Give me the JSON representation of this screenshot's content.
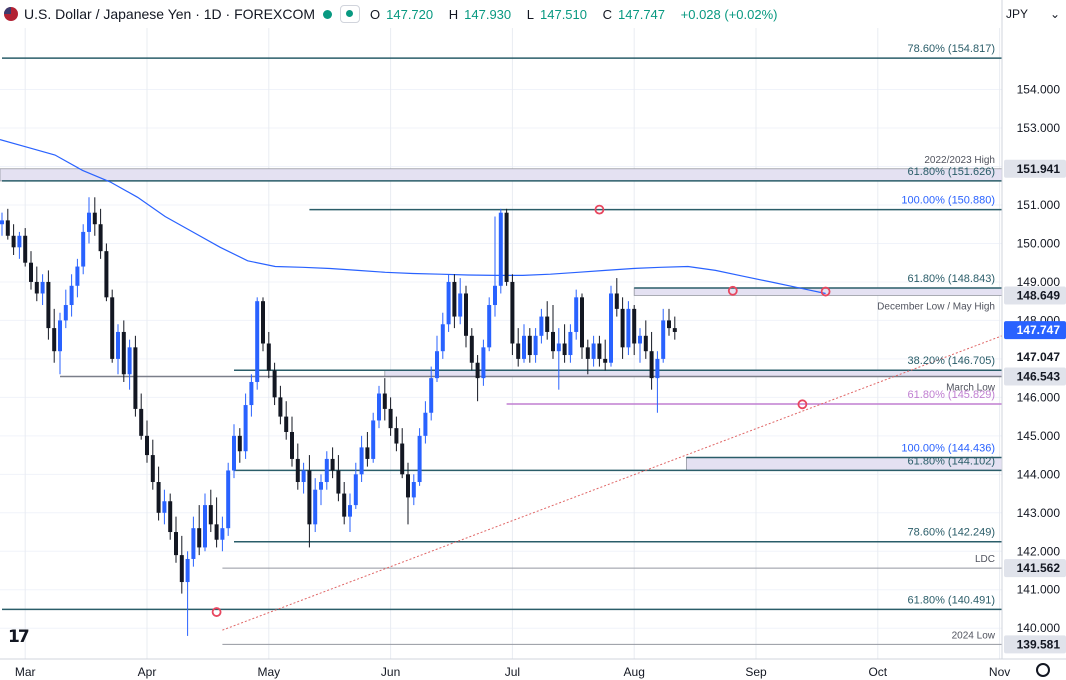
{
  "header": {
    "title": "U.S. Dollar / Japanese Yen · 1D · FOREXCOM",
    "o_label": "O",
    "o": "147.720",
    "h_label": "H",
    "h": "147.930",
    "l_label": "L",
    "l": "147.510",
    "c_label": "C",
    "c": "147.747",
    "change": "+0.028 (+0.02%)"
  },
  "currency": "JPY",
  "logo_text": "17",
  "colors": {
    "up": "#2962ff",
    "down": "#131722",
    "ma": "#2962ff",
    "fib": "#2a5d69",
    "gray": "#9598a1",
    "purple": "#c07fd1",
    "trend": "#e06666",
    "marker": "#e8475f",
    "zone": "#e4e1f2",
    "label_teal": "#2a5d69",
    "label_blue": "#2962ff"
  },
  "chart_data": {
    "type": "candlestick",
    "symbol": "USD/JPY",
    "interval": "1D",
    "x_tick_labels": [
      "Mar",
      "Apr",
      "May",
      "Jun",
      "Jul",
      "Aug",
      "Sep",
      "Oct",
      "Nov"
    ],
    "y_range": [
      139.2,
      155.6
    ],
    "y_tick_labels": [
      "140.000",
      "141.000",
      "142.000",
      "143.000",
      "144.000",
      "145.000",
      "146.000",
      "147.000",
      "148.000",
      "149.000",
      "150.000",
      "151.000",
      "152.000",
      "153.000",
      "154.000"
    ],
    "y_ticks": [
      140,
      141,
      142,
      143,
      144,
      145,
      146,
      147,
      148,
      149,
      150,
      151,
      152,
      153,
      154
    ],
    "last_price": 147.747,
    "price_badges": [
      {
        "value": 151.941,
        "label": "151.941",
        "style": "gray"
      },
      {
        "value": 148.649,
        "label": "148.649",
        "style": "gray"
      },
      {
        "value": 147.747,
        "label": "147.747",
        "style": "last"
      },
      {
        "value": 147.047,
        "label": "147.047",
        "style": "plain"
      },
      {
        "value": 146.543,
        "label": "146.543",
        "style": "gray"
      },
      {
        "value": 141.562,
        "label": "141.562",
        "style": "gray"
      },
      {
        "value": 139.581,
        "label": "139.581",
        "style": "gray"
      }
    ],
    "levels": [
      {
        "value": 154.817,
        "label": "78.60% (154.817)",
        "style": "fib"
      },
      {
        "value": 151.626,
        "label": "61.80% (151.626)",
        "style": "fib"
      },
      {
        "value": 150.88,
        "label": "100.00% (150.880)",
        "style": "blue"
      },
      {
        "value": 148.843,
        "label": "61.80% (148.843)",
        "style": "fib"
      },
      {
        "value": 146.705,
        "label": "38.20% (146.705)",
        "style": "fib"
      },
      {
        "value": 145.829,
        "label": "61.80% (145.829)",
        "style": "purple"
      },
      {
        "value": 144.436,
        "label": "100.00% (144.436)",
        "style": "blue"
      },
      {
        "value": 144.102,
        "label": "61.80% (144.102)",
        "style": "fib"
      },
      {
        "value": 142.249,
        "label": "78.60% (142.249)",
        "style": "fib"
      },
      {
        "value": 140.491,
        "label": "61.80% (140.491)",
        "style": "fib"
      }
    ],
    "annotations": [
      {
        "value": 151.941,
        "label": "2022/2023 High"
      },
      {
        "value": 148.649,
        "label": "December Low / May High"
      },
      {
        "value": 146.543,
        "label": "March Low"
      },
      {
        "value": 141.562,
        "label": "LDC"
      },
      {
        "value": 139.581,
        "label": "2024 Low"
      }
    ],
    "zones": [
      {
        "from": 151.626,
        "to": 151.941,
        "label": "2022/2023 High"
      },
      {
        "from": 148.649,
        "to": 148.843,
        "label": "December Low / May High"
      },
      {
        "from": 146.543,
        "to": 146.705,
        "label": "March Low"
      },
      {
        "from": 144.102,
        "to": 144.436,
        "label": "61.80% (144.102)"
      }
    ],
    "trendline": {
      "from": [
        0,
        139.95
      ],
      "to": [
        168,
        147.6
      ]
    },
    "markers": [
      {
        "bar": 37,
        "price": 140.42
      },
      {
        "bar": 103,
        "price": 150.88
      },
      {
        "bar": 126,
        "price": 148.77
      },
      {
        "bar": 138,
        "price": 145.82
      },
      {
        "bar": 142,
        "price": 148.75
      }
    ],
    "ma_series": [
      152.7,
      152.5,
      152.3,
      151.9,
      151.6,
      151.2,
      150.7,
      150.3,
      149.9,
      149.55,
      149.4,
      149.38,
      149.35,
      149.3,
      149.25,
      149.22,
      149.2,
      149.18,
      149.17,
      149.17,
      149.2,
      149.25,
      149.3,
      149.35,
      149.38,
      149.4,
      149.3,
      149.15,
      149.0,
      148.85,
      148.7
    ],
    "candles": [
      [
        150.5,
        150.8,
        150.2,
        150.6
      ],
      [
        150.6,
        150.9,
        150.1,
        150.2
      ],
      [
        150.2,
        150.5,
        149.7,
        149.9
      ],
      [
        149.9,
        150.3,
        149.6,
        150.2
      ],
      [
        150.2,
        150.4,
        149.4,
        149.5
      ],
      [
        149.5,
        149.8,
        148.8,
        149.0
      ],
      [
        149.0,
        149.4,
        148.5,
        148.7
      ],
      [
        148.7,
        149.2,
        148.4,
        149.0
      ],
      [
        149.0,
        149.3,
        147.5,
        147.8
      ],
      [
        147.8,
        148.3,
        146.9,
        147.2
      ],
      [
        147.2,
        148.2,
        146.6,
        148.0
      ],
      [
        148.0,
        148.8,
        147.8,
        148.4
      ],
      [
        148.4,
        149.2,
        148.1,
        148.9
      ],
      [
        148.9,
        149.6,
        148.6,
        149.4
      ],
      [
        149.4,
        150.5,
        149.2,
        150.3
      ],
      [
        150.3,
        151.2,
        150.0,
        150.8
      ],
      [
        150.8,
        151.2,
        150.2,
        150.5
      ],
      [
        150.5,
        150.9,
        149.6,
        149.8
      ],
      [
        149.8,
        150.0,
        148.5,
        148.6
      ],
      [
        148.6,
        148.8,
        146.9,
        147.0
      ],
      [
        147.0,
        147.9,
        146.6,
        147.7
      ],
      [
        147.7,
        148.0,
        146.4,
        146.6
      ],
      [
        146.6,
        147.5,
        146.2,
        147.3
      ],
      [
        147.3,
        147.6,
        145.5,
        145.7
      ],
      [
        145.7,
        146.1,
        144.9,
        145.0
      ],
      [
        145.0,
        145.4,
        144.3,
        144.5
      ],
      [
        144.5,
        144.9,
        143.6,
        143.8
      ],
      [
        143.8,
        144.2,
        142.8,
        143.0
      ],
      [
        143.0,
        143.6,
        142.7,
        143.3
      ],
      [
        143.3,
        143.5,
        142.3,
        142.5
      ],
      [
        142.5,
        142.9,
        141.7,
        141.9
      ],
      [
        141.9,
        142.4,
        140.9,
        141.2
      ],
      [
        141.2,
        142.0,
        139.8,
        141.8
      ],
      [
        141.8,
        142.9,
        141.6,
        142.6
      ],
      [
        142.6,
        143.2,
        141.9,
        142.1
      ],
      [
        142.1,
        143.5,
        142.0,
        143.2
      ],
      [
        143.2,
        143.6,
        142.5,
        142.7
      ],
      [
        142.7,
        143.4,
        142.1,
        142.3
      ],
      [
        142.3,
        142.9,
        142.0,
        142.6
      ],
      [
        142.6,
        144.3,
        142.4,
        144.1
      ],
      [
        144.1,
        145.3,
        143.9,
        145.0
      ],
      [
        145.0,
        145.2,
        144.3,
        144.6
      ],
      [
        144.6,
        146.1,
        144.4,
        145.8
      ],
      [
        145.8,
        146.6,
        145.5,
        146.4
      ],
      [
        146.4,
        148.6,
        146.2,
        148.5
      ],
      [
        148.5,
        148.6,
        147.2,
        147.4
      ],
      [
        147.4,
        147.7,
        146.5,
        146.7
      ],
      [
        146.7,
        146.9,
        145.8,
        146.0
      ],
      [
        146.0,
        146.3,
        145.3,
        145.5
      ],
      [
        145.5,
        145.9,
        144.9,
        145.1
      ],
      [
        145.1,
        145.5,
        144.2,
        144.4
      ],
      [
        144.4,
        144.8,
        143.6,
        143.8
      ],
      [
        143.8,
        144.3,
        143.5,
        144.1
      ],
      [
        144.1,
        144.5,
        142.1,
        142.7
      ],
      [
        142.7,
        143.9,
        142.5,
        143.6
      ],
      [
        143.6,
        144.0,
        143.2,
        143.8
      ],
      [
        143.8,
        144.6,
        143.6,
        144.4
      ],
      [
        144.4,
        144.7,
        143.9,
        144.1
      ],
      [
        144.1,
        144.5,
        143.3,
        143.5
      ],
      [
        143.5,
        143.8,
        142.7,
        142.9
      ],
      [
        142.9,
        143.5,
        142.5,
        143.2
      ],
      [
        143.2,
        144.3,
        143.1,
        144.0
      ],
      [
        144.0,
        145.0,
        143.8,
        144.7
      ],
      [
        144.7,
        145.1,
        144.2,
        144.4
      ],
      [
        144.4,
        145.6,
        144.3,
        145.4
      ],
      [
        145.4,
        146.3,
        145.2,
        146.1
      ],
      [
        146.1,
        146.5,
        145.4,
        145.7
      ],
      [
        145.7,
        146.0,
        145.0,
        145.2
      ],
      [
        145.2,
        145.5,
        144.6,
        144.8
      ],
      [
        144.8,
        145.2,
        143.9,
        144.0
      ],
      [
        144.0,
        144.3,
        142.7,
        143.4
      ],
      [
        143.4,
        144.0,
        143.2,
        143.8
      ],
      [
        143.8,
        145.2,
        143.7,
        145.0
      ],
      [
        145.0,
        145.9,
        144.8,
        145.6
      ],
      [
        145.6,
        146.8,
        145.4,
        146.5
      ],
      [
        146.5,
        147.6,
        146.4,
        147.2
      ],
      [
        147.2,
        148.2,
        147.0,
        147.9
      ],
      [
        147.9,
        149.2,
        147.7,
        149.0
      ],
      [
        149.0,
        149.2,
        147.8,
        148.1
      ],
      [
        148.1,
        149.1,
        147.9,
        148.7
      ],
      [
        148.7,
        148.9,
        147.3,
        147.6
      ],
      [
        147.6,
        147.8,
        146.7,
        146.9
      ],
      [
        146.9,
        147.1,
        145.9,
        146.5
      ],
      [
        146.5,
        147.5,
        146.3,
        147.3
      ],
      [
        147.3,
        148.6,
        147.2,
        148.4
      ],
      [
        148.4,
        150.7,
        148.1,
        148.9
      ],
      [
        148.9,
        150.9,
        148.7,
        150.8
      ],
      [
        150.8,
        150.9,
        148.9,
        149.0
      ],
      [
        149.0,
        149.2,
        147.1,
        147.4
      ],
      [
        147.4,
        147.8,
        146.8,
        147.0
      ],
      [
        147.0,
        147.9,
        146.9,
        147.6
      ],
      [
        147.6,
        147.8,
        146.9,
        147.1
      ],
      [
        147.1,
        147.8,
        146.9,
        147.6
      ],
      [
        147.6,
        148.3,
        147.4,
        148.1
      ],
      [
        148.1,
        148.5,
        147.5,
        147.7
      ],
      [
        147.7,
        148.4,
        147.0,
        147.2
      ],
      [
        147.2,
        147.8,
        146.2,
        147.4
      ],
      [
        147.4,
        147.9,
        146.9,
        147.1
      ],
      [
        147.1,
        147.9,
        146.9,
        147.7
      ],
      [
        147.7,
        148.8,
        147.5,
        148.6
      ],
      [
        148.6,
        148.7,
        147.0,
        147.3
      ],
      [
        147.3,
        147.5,
        146.6,
        147.0
      ],
      [
        147.0,
        147.6,
        146.8,
        147.4
      ],
      [
        147.4,
        147.6,
        146.8,
        147.0
      ],
      [
        147.0,
        147.5,
        146.7,
        146.9
      ],
      [
        146.9,
        148.9,
        146.8,
        148.7
      ],
      [
        148.7,
        149.1,
        148.1,
        148.3
      ],
      [
        148.3,
        148.6,
        147.0,
        147.3
      ],
      [
        147.3,
        148.5,
        147.1,
        148.3
      ],
      [
        148.3,
        148.4,
        147.1,
        147.4
      ],
      [
        147.4,
        147.8,
        146.9,
        147.6
      ],
      [
        147.6,
        148.0,
        147.0,
        147.2
      ],
      [
        147.2,
        147.7,
        146.2,
        146.5
      ],
      [
        146.5,
        147.2,
        145.6,
        147.0
      ],
      [
        147.0,
        148.3,
        146.9,
        148.0
      ],
      [
        148.0,
        148.3,
        147.6,
        147.8
      ],
      [
        147.8,
        148.1,
        147.5,
        147.7
      ]
    ]
  },
  "x_tick_bars": [
    4,
    25,
    46,
    67,
    88,
    109,
    130,
    151,
    172
  ]
}
